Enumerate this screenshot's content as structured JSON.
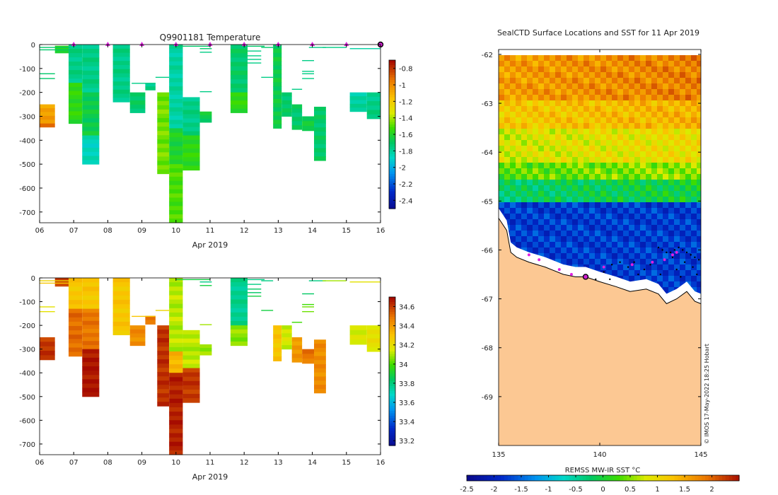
{
  "chart_data": [
    {
      "id": "temp",
      "type": "heatmap",
      "title": "Q9901181  Temperature",
      "xlabel": "Apr 2019",
      "ylabel": "",
      "x_ticks": [
        "06",
        "07",
        "08",
        "09",
        "10",
        "11",
        "12",
        "13",
        "14",
        "15",
        "16"
      ],
      "xlim": [
        6,
        16
      ],
      "y_ticks": [
        0,
        -100,
        -200,
        -300,
        -400,
        -500,
        -600,
        -700
      ],
      "ylim": [
        -745,
        0
      ],
      "profile_times": [
        7.0,
        8.0,
        9.0,
        10.0,
        11.0,
        12.0,
        13.0,
        14.0,
        15.0,
        16.0
      ],
      "colorbar": {
        "range": [
          -2.5,
          -0.7
        ],
        "ticks": [
          "-0.8",
          "-1",
          "-1.2",
          "-1.4",
          "-1.6",
          "-1.8",
          "-2",
          "-2.2",
          "-2.4"
        ]
      },
      "blocks": [
        {
          "x0": 6.0,
          "x1": 6.45,
          "d0": 250,
          "d1": 330,
          "v": -1.05
        },
        {
          "x0": 6.0,
          "x1": 6.45,
          "d0": 330,
          "d1": 345,
          "v": -0.9
        },
        {
          "x0": 6.45,
          "x1": 6.85,
          "d0": 5,
          "d1": 35,
          "v": -1.6
        },
        {
          "x0": 6.85,
          "x1": 7.25,
          "d0": 0,
          "d1": 160,
          "v": -1.75
        },
        {
          "x0": 6.85,
          "x1": 7.25,
          "d0": 160,
          "d1": 330,
          "v": -1.55
        },
        {
          "x0": 7.25,
          "x1": 7.75,
          "d0": 0,
          "d1": 200,
          "v": -1.75
        },
        {
          "x0": 7.25,
          "x1": 7.75,
          "d0": 200,
          "d1": 380,
          "v": -1.65
        },
        {
          "x0": 7.25,
          "x1": 7.75,
          "d0": 380,
          "d1": 500,
          "v": -1.85
        },
        {
          "x0": 8.15,
          "x1": 8.65,
          "d0": 0,
          "d1": 240,
          "v": -1.75
        },
        {
          "x0": 8.65,
          "x1": 9.1,
          "d0": 200,
          "d1": 285,
          "v": -1.7
        },
        {
          "x0": 9.1,
          "x1": 9.4,
          "d0": 160,
          "d1": 190,
          "v": -1.75
        },
        {
          "x0": 9.45,
          "x1": 9.8,
          "d0": 200,
          "d1": 540,
          "v": -1.45
        },
        {
          "x0": 9.8,
          "x1": 10.2,
          "d0": 0,
          "d1": 350,
          "v": -1.8
        },
        {
          "x0": 9.8,
          "x1": 10.2,
          "d0": 350,
          "d1": 500,
          "v": -1.6
        },
        {
          "x0": 9.8,
          "x1": 10.2,
          "d0": 500,
          "d1": 745,
          "v": -1.5
        },
        {
          "x0": 10.2,
          "x1": 10.7,
          "d0": 220,
          "d1": 380,
          "v": -1.75
        },
        {
          "x0": 10.2,
          "x1": 10.7,
          "d0": 380,
          "d1": 525,
          "v": -1.55
        },
        {
          "x0": 10.7,
          "x1": 11.05,
          "d0": 280,
          "d1": 325,
          "v": -1.65
        },
        {
          "x0": 11.6,
          "x1": 12.1,
          "d0": 0,
          "d1": 200,
          "v": -1.7
        },
        {
          "x0": 11.6,
          "x1": 12.1,
          "d0": 200,
          "d1": 285,
          "v": -1.55
        },
        {
          "x0": 12.85,
          "x1": 13.1,
          "d0": 0,
          "d1": 350,
          "v": -1.65
        },
        {
          "x0": 13.1,
          "x1": 13.4,
          "d0": 200,
          "d1": 300,
          "v": -1.7
        },
        {
          "x0": 13.4,
          "x1": 13.7,
          "d0": 250,
          "d1": 355,
          "v": -1.7
        },
        {
          "x0": 13.7,
          "x1": 14.05,
          "d0": 300,
          "d1": 360,
          "v": -1.65
        },
        {
          "x0": 14.05,
          "x1": 14.4,
          "d0": 260,
          "d1": 485,
          "v": -1.7
        },
        {
          "x0": 15.1,
          "x1": 15.6,
          "d0": 200,
          "d1": 280,
          "v": -1.8
        },
        {
          "x0": 15.6,
          "x1": 16.1,
          "d0": 200,
          "d1": 310,
          "v": -1.75
        }
      ],
      "lines": [
        {
          "x0": 6.0,
          "x1": 6.45,
          "d": 120,
          "v": -1.7
        },
        {
          "x0": 6.0,
          "x1": 6.45,
          "d": 140,
          "v": -1.7
        },
        {
          "x0": 6.0,
          "x1": 6.9,
          "d": 10,
          "v": -1.7
        },
        {
          "x0": 6.0,
          "x1": 6.9,
          "d": 20,
          "v": -1.7
        },
        {
          "x0": 8.7,
          "x1": 9.4,
          "d": 160,
          "v": -1.75
        },
        {
          "x0": 9.4,
          "x1": 9.8,
          "d": 135,
          "v": -1.75
        },
        {
          "x0": 10.0,
          "x1": 11.0,
          "d": 5,
          "v": -1.7
        },
        {
          "x0": 10.7,
          "x1": 11.05,
          "d": 15,
          "v": -1.7
        },
        {
          "x0": 10.7,
          "x1": 11.05,
          "d": 30,
          "v": -1.75
        },
        {
          "x0": 10.7,
          "x1": 11.05,
          "d": 195,
          "v": -1.75
        },
        {
          "x0": 12.0,
          "x1": 12.6,
          "d": 5,
          "v": -1.7
        },
        {
          "x0": 12.1,
          "x1": 12.5,
          "d": 25,
          "v": -1.75
        },
        {
          "x0": 12.1,
          "x1": 12.5,
          "d": 45,
          "v": -1.75
        },
        {
          "x0": 12.1,
          "x1": 12.5,
          "d": 60,
          "v": -1.75
        },
        {
          "x0": 12.1,
          "x1": 12.5,
          "d": 75,
          "v": -1.75
        },
        {
          "x0": 12.5,
          "x1": 12.85,
          "d": 135,
          "v": -1.75
        },
        {
          "x0": 12.5,
          "x1": 12.85,
          "d": 10,
          "v": -1.7
        },
        {
          "x0": 13.4,
          "x1": 13.7,
          "d": 185,
          "v": -1.75
        },
        {
          "x0": 13.7,
          "x1": 14.05,
          "d": 65,
          "v": -1.75
        },
        {
          "x0": 13.7,
          "x1": 14.05,
          "d": 110,
          "v": -1.75
        },
        {
          "x0": 13.7,
          "x1": 14.05,
          "d": 120,
          "v": -1.75
        },
        {
          "x0": 13.7,
          "x1": 14.05,
          "d": 140,
          "v": -1.75
        },
        {
          "x0": 13.9,
          "x1": 14.4,
          "d": 10,
          "v": -1.75
        },
        {
          "x0": 14.3,
          "x1": 15.0,
          "d": 10,
          "v": -1.75
        },
        {
          "x0": 15.1,
          "x1": 16.0,
          "d": 15,
          "v": -1.8
        }
      ]
    },
    {
      "id": "salt",
      "type": "heatmap",
      "title": "",
      "xlabel": "Apr 2019",
      "ylabel": "",
      "x_ticks": [
        "06",
        "07",
        "08",
        "09",
        "10",
        "11",
        "12",
        "13",
        "14",
        "15",
        "16"
      ],
      "xlim": [
        6,
        16
      ],
      "y_ticks": [
        0,
        -100,
        -200,
        -300,
        -400,
        -500,
        -600,
        -700
      ],
      "ylim": [
        -745,
        0
      ],
      "colorbar": {
        "range": [
          33.15,
          34.7
        ],
        "ticks": [
          "34.6",
          "34.4",
          "34.2",
          "34",
          "33.8",
          "33.6",
          "33.4",
          "33.2"
        ]
      },
      "blocks": [
        {
          "x0": 6.0,
          "x1": 6.45,
          "d0": 250,
          "d1": 345,
          "v": 34.62
        },
        {
          "x0": 6.45,
          "x1": 6.85,
          "d0": 0,
          "d1": 35,
          "v": 34.62
        },
        {
          "x0": 6.85,
          "x1": 7.25,
          "d0": 0,
          "d1": 130,
          "v": 34.3
        },
        {
          "x0": 6.85,
          "x1": 7.25,
          "d0": 130,
          "d1": 330,
          "v": 34.52
        },
        {
          "x0": 7.25,
          "x1": 7.75,
          "d0": 0,
          "d1": 130,
          "v": 34.3
        },
        {
          "x0": 7.25,
          "x1": 7.75,
          "d0": 130,
          "d1": 300,
          "v": 34.5
        },
        {
          "x0": 7.25,
          "x1": 7.75,
          "d0": 300,
          "d1": 500,
          "v": 34.68
        },
        {
          "x0": 8.15,
          "x1": 8.65,
          "d0": 0,
          "d1": 240,
          "v": 34.3
        },
        {
          "x0": 8.65,
          "x1": 9.1,
          "d0": 200,
          "d1": 285,
          "v": 34.45
        },
        {
          "x0": 9.1,
          "x1": 9.4,
          "d0": 160,
          "d1": 195,
          "v": 34.5
        },
        {
          "x0": 9.45,
          "x1": 9.8,
          "d0": 200,
          "d1": 540,
          "v": 34.63
        },
        {
          "x0": 9.8,
          "x1": 10.2,
          "d0": 0,
          "d1": 310,
          "v": 34.12
        },
        {
          "x0": 9.8,
          "x1": 10.2,
          "d0": 310,
          "d1": 400,
          "v": 34.35
        },
        {
          "x0": 9.8,
          "x1": 10.2,
          "d0": 400,
          "d1": 745,
          "v": 34.66
        },
        {
          "x0": 10.2,
          "x1": 10.7,
          "d0": 220,
          "d1": 380,
          "v": 34.12
        },
        {
          "x0": 10.2,
          "x1": 10.7,
          "d0": 380,
          "d1": 525,
          "v": 34.62
        },
        {
          "x0": 10.7,
          "x1": 11.05,
          "d0": 280,
          "d1": 325,
          "v": 34.1
        },
        {
          "x0": 11.6,
          "x1": 12.1,
          "d0": 0,
          "d1": 200,
          "v": 33.78
        },
        {
          "x0": 11.6,
          "x1": 12.1,
          "d0": 200,
          "d1": 285,
          "v": 34.08
        },
        {
          "x0": 12.85,
          "x1": 13.1,
          "d0": 200,
          "d1": 350,
          "v": 34.3
        },
        {
          "x0": 13.1,
          "x1": 13.4,
          "d0": 200,
          "d1": 300,
          "v": 34.15
        },
        {
          "x0": 13.4,
          "x1": 13.7,
          "d0": 250,
          "d1": 355,
          "v": 34.42
        },
        {
          "x0": 13.7,
          "x1": 14.05,
          "d0": 300,
          "d1": 360,
          "v": 34.5
        },
        {
          "x0": 14.05,
          "x1": 14.4,
          "d0": 260,
          "d1": 485,
          "v": 34.45
        },
        {
          "x0": 15.1,
          "x1": 15.6,
          "d0": 200,
          "d1": 280,
          "v": 34.15
        },
        {
          "x0": 15.6,
          "x1": 16.1,
          "d0": 200,
          "d1": 310,
          "v": 34.2
        }
      ],
      "lines": [
        {
          "x0": 6.0,
          "x1": 6.45,
          "d": 120,
          "v": 34.2
        },
        {
          "x0": 6.0,
          "x1": 6.45,
          "d": 140,
          "v": 34.2
        },
        {
          "x0": 6.0,
          "x1": 6.9,
          "d": 10,
          "v": 34.25
        },
        {
          "x0": 6.0,
          "x1": 6.9,
          "d": 20,
          "v": 34.3
        },
        {
          "x0": 8.7,
          "x1": 9.4,
          "d": 160,
          "v": 34.3
        },
        {
          "x0": 9.4,
          "x1": 9.8,
          "d": 135,
          "v": 34.25
        },
        {
          "x0": 10.0,
          "x1": 11.0,
          "d": 5,
          "v": 33.9
        },
        {
          "x0": 10.7,
          "x1": 11.05,
          "d": 15,
          "v": 33.8
        },
        {
          "x0": 10.7,
          "x1": 11.05,
          "d": 30,
          "v": 33.9
        },
        {
          "x0": 10.7,
          "x1": 11.05,
          "d": 195,
          "v": 34.1
        },
        {
          "x0": 12.0,
          "x1": 12.6,
          "d": 5,
          "v": 33.8
        },
        {
          "x0": 12.1,
          "x1": 12.5,
          "d": 25,
          "v": 33.8
        },
        {
          "x0": 12.1,
          "x1": 12.5,
          "d": 45,
          "v": 33.85
        },
        {
          "x0": 12.1,
          "x1": 12.5,
          "d": 60,
          "v": 33.85
        },
        {
          "x0": 12.1,
          "x1": 12.5,
          "d": 75,
          "v": 33.9
        },
        {
          "x0": 12.5,
          "x1": 12.85,
          "d": 135,
          "v": 33.9
        },
        {
          "x0": 12.5,
          "x1": 12.85,
          "d": 10,
          "v": 33.8
        },
        {
          "x0": 13.4,
          "x1": 13.7,
          "d": 185,
          "v": 34.0
        },
        {
          "x0": 13.7,
          "x1": 14.05,
          "d": 65,
          "v": 33.85
        },
        {
          "x0": 13.7,
          "x1": 14.05,
          "d": 110,
          "v": 34.0
        },
        {
          "x0": 13.7,
          "x1": 14.05,
          "d": 120,
          "v": 34.05
        },
        {
          "x0": 13.7,
          "x1": 14.05,
          "d": 140,
          "v": 34.05
        },
        {
          "x0": 13.9,
          "x1": 14.4,
          "d": 10,
          "v": 33.8
        },
        {
          "x0": 14.3,
          "x1": 15.0,
          "d": 10,
          "v": 34.1
        },
        {
          "x0": 15.1,
          "x1": 16.0,
          "d": 15,
          "v": 34.2
        }
      ]
    },
    {
      "id": "map",
      "type": "heatmap",
      "title": "SealCTD Surface Locations and SST for 11 Apr 2019",
      "xlabel": "",
      "ylabel": "",
      "x_ticks": [
        "135",
        "140",
        "145"
      ],
      "xlim": [
        135,
        145
      ],
      "y_ticks": [
        "-62",
        "-63",
        "-64",
        "-65",
        "-66",
        "-67",
        "-68",
        "-69"
      ],
      "ylim": [
        -70,
        -61.9
      ],
      "colorbar": {
        "label": "REMSS MW-IR SST °C",
        "range": [
          -2.5,
          2.5
        ],
        "ticks": [
          "-2.5",
          "-2",
          "-1.5",
          "-1",
          "-0.5",
          "0",
          "0.5",
          "1",
          "1.5",
          "2"
        ]
      },
      "sst_bands": [
        {
          "lat_top": -62.0,
          "lat_bot": -62.9,
          "v": 1.55
        },
        {
          "lat_top": -62.9,
          "lat_bot": -63.5,
          "v": 1.15
        },
        {
          "lat_top": -63.5,
          "lat_bot": -64.2,
          "v": 0.75
        },
        {
          "lat_top": -64.2,
          "lat_bot": -64.55,
          "v": 0.3
        },
        {
          "lat_top": -64.55,
          "lat_bot": -64.95,
          "v": -0.3
        },
        {
          "lat_top": -64.95,
          "lat_bot": -67.1,
          "v": -1.8
        }
      ],
      "coastline": [
        [
          135.0,
          -65.35
        ],
        [
          135.4,
          -65.6
        ],
        [
          135.6,
          -66.05
        ],
        [
          135.9,
          -66.15
        ],
        [
          136.5,
          -66.25
        ],
        [
          137.3,
          -66.35
        ],
        [
          138.2,
          -66.5
        ],
        [
          138.8,
          -66.55
        ],
        [
          139.3,
          -66.55
        ],
        [
          140.0,
          -66.65
        ],
        [
          140.8,
          -66.75
        ],
        [
          141.5,
          -66.85
        ],
        [
          142.3,
          -66.8
        ],
        [
          142.9,
          -66.9
        ],
        [
          143.3,
          -67.1
        ],
        [
          143.8,
          -67.0
        ],
        [
          144.3,
          -66.85
        ],
        [
          144.7,
          -67.05
        ],
        [
          145.0,
          -67.1
        ]
      ],
      "seal_track_points": [
        [
          143.8,
          -66.05
        ],
        [
          143.6,
          -66.1
        ],
        [
          143.2,
          -66.2
        ],
        [
          142.6,
          -66.25
        ],
        [
          141.6,
          -66.3
        ],
        [
          140.2,
          -66.35
        ],
        [
          138.0,
          -66.4
        ],
        [
          136.5,
          -66.1
        ],
        [
          137.0,
          -66.2
        ],
        [
          138.6,
          -66.5
        ]
      ],
      "cast_points": [
        [
          142.9,
          -65.95
        ],
        [
          143.1,
          -66.0
        ],
        [
          143.3,
          -66.05
        ],
        [
          143.5,
          -66.05
        ],
        [
          143.7,
          -66.0
        ],
        [
          143.9,
          -65.95
        ],
        [
          144.1,
          -66.0
        ],
        [
          144.3,
          -66.05
        ],
        [
          144.5,
          -66.1
        ],
        [
          144.7,
          -66.15
        ],
        [
          144.9,
          -66.2
        ],
        [
          143.6,
          -66.15
        ],
        [
          143.2,
          -66.2
        ],
        [
          144.2,
          -66.25
        ],
        [
          144.6,
          -66.35
        ],
        [
          143.8,
          -66.4
        ],
        [
          142.5,
          -66.3
        ],
        [
          142.2,
          -66.4
        ],
        [
          141.7,
          -66.25
        ],
        [
          141.4,
          -66.35
        ],
        [
          141.0,
          -66.25
        ],
        [
          140.6,
          -66.3
        ],
        [
          140.2,
          -66.45
        ],
        [
          141.9,
          -66.5
        ],
        [
          143.0,
          -66.5
        ],
        [
          144.0,
          -66.55
        ],
        [
          144.8,
          -66.5
        ],
        [
          139.8,
          -66.6
        ],
        [
          140.5,
          -66.6
        ]
      ],
      "current_location": [
        139.3,
        -66.55
      ],
      "watermark": "© IMOS 17-May-2022 18:25 Hobart"
    }
  ]
}
